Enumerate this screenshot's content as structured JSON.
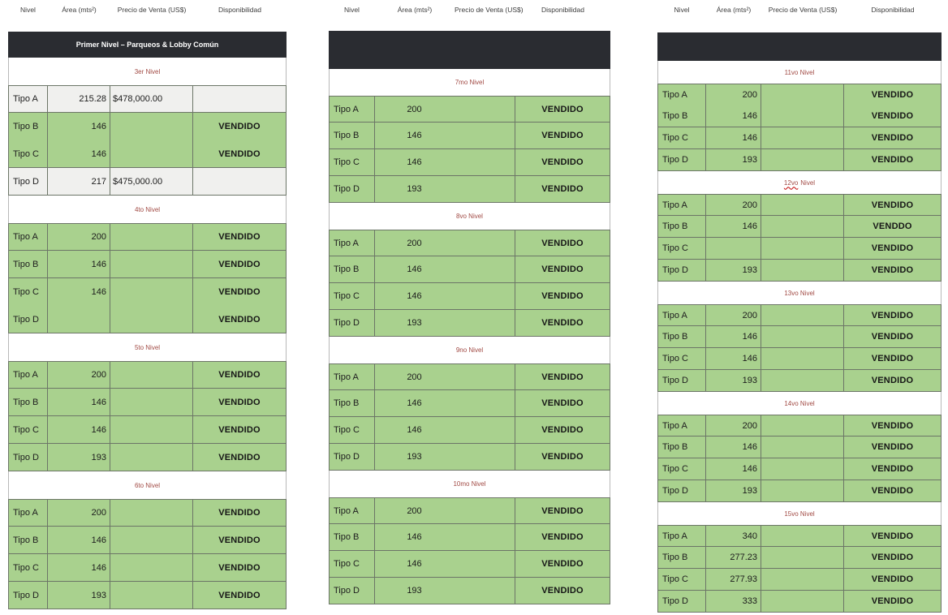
{
  "document_title": "Disponibilidad de niveles",
  "column_headers": [
    "Nivel",
    "Área (mts²)",
    "Precio de Venta (US$)",
    "Disponibilidad"
  ],
  "colors": {
    "green": "#a9d18e",
    "gray_row": "#f0f0ee",
    "banner_bg": "#2a2c31",
    "label_red": "#a14a44",
    "grid": "#6c7567",
    "squiggle_red": "#c00000"
  },
  "tables": [
    {
      "banner": "Primer Nivel – Parqueos & Lobby Común",
      "merge_area_precio": false,
      "sections": [
        {
          "label": "3er Nivel",
          "rows": [
            {
              "tipo": "Tipo A",
              "area": "215.28",
              "precio": "$478,000.00",
              "disp": "",
              "bg": "gray"
            },
            {
              "tipo": "Tipo B",
              "area": "146",
              "precio": "",
              "disp": "VENDIDO",
              "merge_below": true
            },
            {
              "tipo": "Tipo C",
              "area": "146",
              "precio": "",
              "disp": "VENDIDO"
            },
            {
              "tipo": "Tipo D",
              "area": "217",
              "precio": "$475,000.00",
              "disp": "",
              "bg": "gray"
            }
          ]
        },
        {
          "label": "4to Nivel",
          "rows": [
            {
              "tipo": "Tipo A",
              "area": "200",
              "precio": "",
              "disp": "VENDIDO"
            },
            {
              "tipo": "Tipo B",
              "area": "146",
              "precio": "",
              "disp": "VENDIDO"
            },
            {
              "tipo": "Tipo C",
              "area": "146",
              "precio": "",
              "disp": "VENDIDO",
              "merge_below": true
            },
            {
              "tipo": "Tipo D",
              "area": "",
              "precio": "",
              "disp": "VENDIDO"
            }
          ]
        },
        {
          "label": "5to Nivel",
          "rows": [
            {
              "tipo": "Tipo A",
              "area": "200",
              "precio": "",
              "disp": "VENDIDO"
            },
            {
              "tipo": "Tipo B",
              "area": "146",
              "precio": "",
              "disp": "VENDIDO"
            },
            {
              "tipo": "Tipo C",
              "area": "146",
              "precio": "",
              "disp": "VENDIDO"
            },
            {
              "tipo": "Tipo D",
              "area": "193",
              "precio": "",
              "disp": "VENDIDO"
            }
          ]
        },
        {
          "label": "6to Nivel",
          "rows": [
            {
              "tipo": "Tipo A",
              "area": "200",
              "precio": "",
              "disp": "VENDIDO"
            },
            {
              "tipo": "Tipo B",
              "area": "146",
              "precio": "",
              "disp": "VENDIDO"
            },
            {
              "tipo": "Tipo C",
              "area": "146",
              "precio": "",
              "disp": "VENDIDO"
            },
            {
              "tipo": "Tipo D",
              "area": "193",
              "precio": "",
              "disp": "VENDIDO"
            }
          ]
        }
      ]
    },
    {
      "banner": "",
      "merge_area_precio": true,
      "sections": [
        {
          "label": "7mo Nivel",
          "rows": [
            {
              "tipo": "Tipo A",
              "area": "200",
              "precio": "",
              "disp": "VENDIDO"
            },
            {
              "tipo": "Tipo B",
              "area": "146",
              "precio": "",
              "disp": "VENDIDO"
            },
            {
              "tipo": "Tipo C",
              "area": "146",
              "precio": "",
              "disp": "VENDIDO"
            },
            {
              "tipo": "Tipo D",
              "area": "193",
              "precio": "",
              "disp": "VENDIDO"
            }
          ]
        },
        {
          "label": "8vo Nivel",
          "rows": [
            {
              "tipo": "Tipo A",
              "area": "200",
              "precio": "",
              "disp": "VENDIDO"
            },
            {
              "tipo": "Tipo B",
              "area": "146",
              "precio": "",
              "disp": "VENDIDO"
            },
            {
              "tipo": "Tipo C",
              "area": "146",
              "precio": "",
              "disp": "VENDIDO"
            },
            {
              "tipo": "Tipo D",
              "area": "193",
              "precio": "",
              "disp": "VENDIDO"
            }
          ]
        },
        {
          "label": "9no Nivel",
          "rows": [
            {
              "tipo": "Tipo A",
              "area": "200",
              "precio": "",
              "disp": "VENDIDO"
            },
            {
              "tipo": "Tipo B",
              "area": "146",
              "precio": "",
              "disp": "VENDIDO"
            },
            {
              "tipo": "Tipo C",
              "area": "146",
              "precio": "",
              "disp": "VENDIDO"
            },
            {
              "tipo": "Tipo D",
              "area": "193",
              "precio": "",
              "disp": "VENDIDO"
            }
          ]
        },
        {
          "label": "10mo Nivel",
          "rows": [
            {
              "tipo": "Tipo A",
              "area": "200",
              "precio": "",
              "disp": "VENDIDO"
            },
            {
              "tipo": "Tipo B",
              "area": "146",
              "precio": "",
              "disp": "VENDIDO"
            },
            {
              "tipo": "Tipo C",
              "area": "146",
              "precio": "",
              "disp": "VENDIDO"
            },
            {
              "tipo": "Tipo D",
              "area": "193",
              "precio": "",
              "disp": "VENDIDO"
            }
          ]
        }
      ]
    },
    {
      "banner": "",
      "merge_area_precio": false,
      "sections": [
        {
          "label": "11vo Nivel",
          "rows": [
            {
              "tipo": "Tipo A",
              "area": "200",
              "precio": "",
              "disp": "VENDIDO",
              "merge_below": true
            },
            {
              "tipo": "Tipo B",
              "area": "146",
              "precio": "",
              "disp": "VENDIDO"
            },
            {
              "tipo": "Tipo C",
              "area": "146",
              "precio": "",
              "disp": "VENDIDO"
            },
            {
              "tipo": "Tipo D",
              "area": "193",
              "precio": "",
              "disp": "VENDIDO"
            }
          ]
        },
        {
          "label": "12vo Nivel",
          "label_word": "12vo",
          "label_rest": "Nivel",
          "rows": [
            {
              "tipo": "Tipo A",
              "area": "200",
              "precio": "",
              "disp": "VENDIDO"
            },
            {
              "tipo": "Tipo B",
              "area": "146",
              "precio": "",
              "disp": "VENDDO"
            },
            {
              "tipo": "Tipo C",
              "area": "",
              "precio": "",
              "disp": "VENDIDO"
            },
            {
              "tipo": "Tipo D",
              "area": "193",
              "precio": "",
              "disp": "VENDIDO"
            }
          ]
        },
        {
          "label": "13vo Nivel",
          "rows": [
            {
              "tipo": "Tipo A",
              "area": "200",
              "precio": "",
              "disp": "VENDIDO"
            },
            {
              "tipo": "Tipo B",
              "area": "146",
              "precio": "",
              "disp": "VENDIDO"
            },
            {
              "tipo": "Tipo C",
              "area": "146",
              "precio": "",
              "disp": "VENDIDO"
            },
            {
              "tipo": "Tipo D",
              "area": "193",
              "precio": "",
              "disp": "VENDIDO"
            }
          ]
        },
        {
          "label": "14vo Nivel",
          "rows": [
            {
              "tipo": "Tipo A",
              "area": "200",
              "precio": "",
              "disp": "VENDIDO"
            },
            {
              "tipo": "Tipo B",
              "area": "146",
              "precio": "",
              "disp": "VENDIDO"
            },
            {
              "tipo": "Tipo C",
              "area": "146",
              "precio": "",
              "disp": "VENDIDO"
            },
            {
              "tipo": "Tipo D",
              "area": "193",
              "precio": "",
              "disp": "VENDIDO"
            }
          ]
        },
        {
          "label": "15vo Nivel",
          "rows": [
            {
              "tipo": "Tipo A",
              "area": "340",
              "precio": "",
              "disp": "VENDIDO"
            },
            {
              "tipo": "Tipo B",
              "area": "277.23",
              "precio": "",
              "disp": "VENDIDO"
            },
            {
              "tipo": "Tipo C",
              "area": "277.93",
              "precio": "",
              "disp": "VENDIDO"
            },
            {
              "tipo": "Tipo D",
              "area": "333",
              "precio": "",
              "disp": "VENDIDO"
            }
          ]
        }
      ]
    }
  ]
}
